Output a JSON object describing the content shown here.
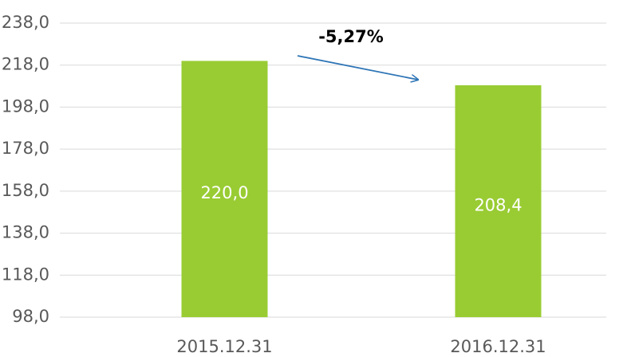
{
  "chart_data": {
    "type": "bar",
    "categories": [
      "2015.12.31",
      "2016.12.31"
    ],
    "values": [
      220,
      208.4
    ],
    "value_labels": [
      "220,0",
      "208,4"
    ],
    "color": "#99cc33",
    "ylim": [
      98,
      238
    ],
    "yticks": [
      {
        "value": 98,
        "label": "98,0"
      },
      {
        "value": 118,
        "label": "118,0"
      },
      {
        "value": 138,
        "label": "138,0"
      },
      {
        "value": 158,
        "label": "158,0"
      },
      {
        "value": 178,
        "label": "178,0"
      },
      {
        "value": 198,
        "label": "198,0"
      },
      {
        "value": 218,
        "label": "218,0"
      },
      {
        "value": 238,
        "label": "238,0"
      }
    ],
    "grid": true,
    "annotation": "-5,27%"
  }
}
